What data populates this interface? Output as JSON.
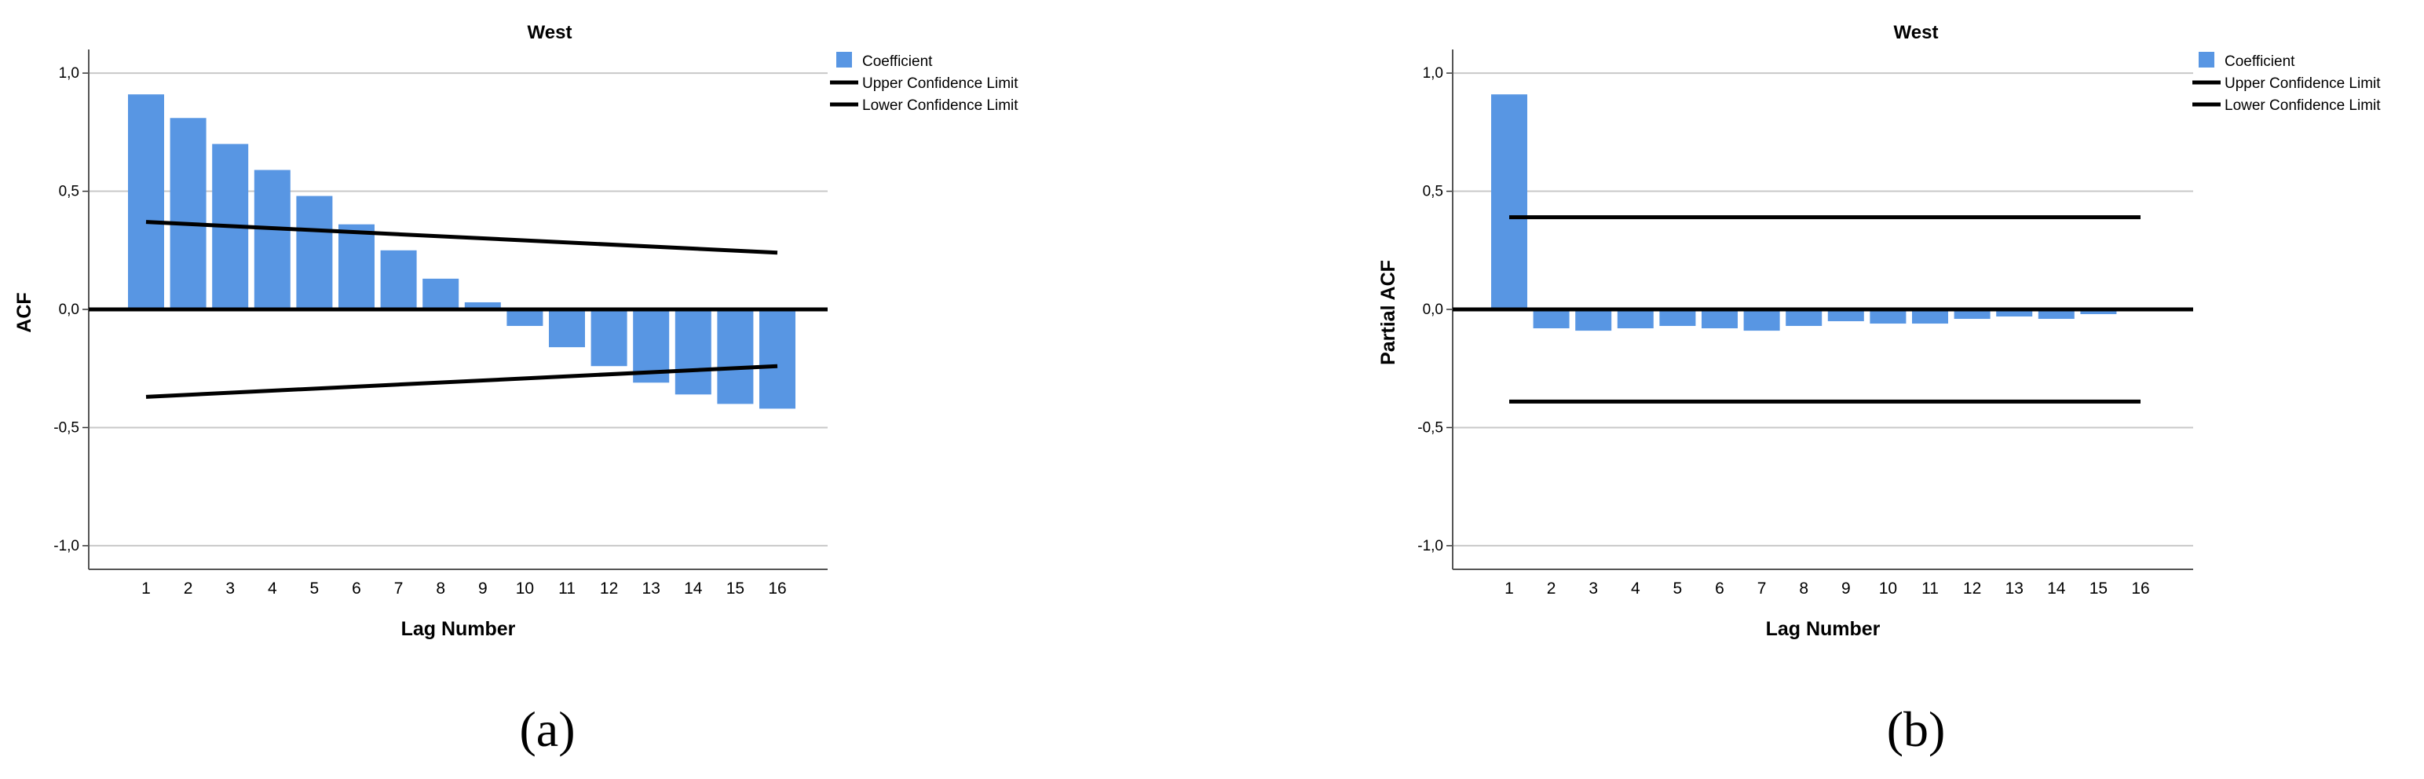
{
  "chart_data": [
    {
      "type": "bar",
      "title": "West",
      "xlabel": "Lag Number",
      "ylabel": "ACF",
      "caption": "(a)",
      "categories": [
        "1",
        "2",
        "3",
        "4",
        "5",
        "6",
        "7",
        "8",
        "9",
        "10",
        "11",
        "12",
        "13",
        "14",
        "15",
        "16"
      ],
      "yticks": [
        "-1,0",
        "-0,5",
        "0,0",
        "0,5",
        "1,0"
      ],
      "ylim": [
        -1.1,
        1.1
      ],
      "series": [
        {
          "name": "Coefficient",
          "color": "#5896e3",
          "values": [
            0.91,
            0.81,
            0.7,
            0.59,
            0.48,
            0.36,
            0.25,
            0.13,
            0.03,
            -0.07,
            -0.16,
            -0.24,
            -0.31,
            -0.36,
            -0.4,
            -0.42
          ]
        }
      ],
      "confidence": {
        "upper": {
          "name": "Upper Confidence Limit",
          "start": 0.37,
          "end": 0.24
        },
        "lower": {
          "name": "Lower Confidence Limit",
          "start": -0.37,
          "end": -0.24
        }
      },
      "legend_placement": "top-right, outside plot"
    },
    {
      "type": "bar",
      "title": "West",
      "xlabel": "Lag Number",
      "ylabel": "Partial ACF",
      "caption": "(b)",
      "categories": [
        "1",
        "2",
        "3",
        "4",
        "5",
        "6",
        "7",
        "8",
        "9",
        "10",
        "11",
        "12",
        "13",
        "14",
        "15",
        "16"
      ],
      "yticks": [
        "-1,0",
        "-0,5",
        "0,0",
        "0,5",
        "1,0"
      ],
      "ylim": [
        -1.1,
        1.1
      ],
      "series": [
        {
          "name": "Coefficient",
          "color": "#5896e3",
          "values": [
            0.91,
            -0.08,
            -0.09,
            -0.08,
            -0.07,
            -0.08,
            -0.09,
            -0.07,
            -0.05,
            -0.06,
            -0.06,
            -0.04,
            -0.03,
            -0.04,
            -0.02,
            0.0
          ]
        }
      ],
      "confidence": {
        "upper": {
          "name": "Upper Confidence Limit",
          "start": 0.39,
          "end": 0.39
        },
        "lower": {
          "name": "Lower Confidence Limit",
          "start": -0.39,
          "end": -0.39
        }
      },
      "legend_placement": "top-right, outside plot"
    }
  ]
}
